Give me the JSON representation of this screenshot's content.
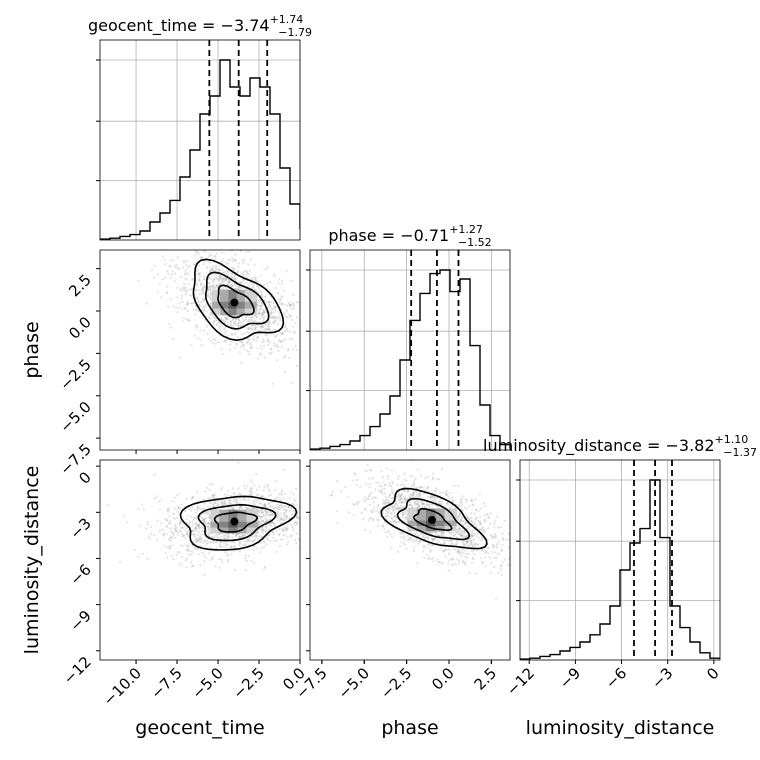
{
  "chart_data": {
    "type": "corner",
    "parameters": [
      "geocent_time",
      "phase",
      "luminosity_distance"
    ],
    "ranges": {
      "geocent_time": [
        -12.2,
        0.0
      ],
      "phase": [
        -8.2,
        3.6
      ],
      "luminosity_distance": [
        -12.6,
        0.4
      ]
    },
    "ticks": {
      "geocent_time": [
        -10.0,
        -7.5,
        -5.0,
        -2.5,
        0.0
      ],
      "phase": [
        -7.5,
        -5.0,
        -2.5,
        0.0,
        2.5
      ],
      "luminosity_distance": [
        -12,
        -9,
        -6,
        -3,
        0
      ]
    },
    "tick_labels": {
      "geocent_time": [
        "−10.0",
        "−7.5",
        "−5.0",
        "−2.5",
        "0.0"
      ],
      "phase": [
        "−7.5",
        "−5.0",
        "−2.5",
        "0.0",
        "2.5"
      ],
      "luminosity_distance": [
        "−12",
        "−9",
        "−6",
        "−3",
        "0"
      ]
    },
    "titles": {
      "geocent_time": {
        "name": "geocent_time",
        "median": "−3.74",
        "plus": "+1.74",
        "minus": "−1.79"
      },
      "phase": {
        "name": "phase",
        "median": "−0.71",
        "plus": "+1.27",
        "minus": "−1.52"
      },
      "luminosity_distance": {
        "name": "luminosity_distance",
        "median": "−3.82",
        "plus": "+1.10",
        "minus": "−1.37"
      }
    },
    "quantiles": {
      "geocent_time": [
        -5.53,
        -3.74,
        -2.0
      ],
      "phase": [
        -2.23,
        -0.71,
        0.56
      ],
      "luminosity_distance": [
        -5.19,
        -3.82,
        -2.72
      ]
    },
    "histograms": {
      "geocent_time": {
        "edges": [
          -12.2,
          -11.59,
          -10.98,
          -10.37,
          -9.76,
          -9.15,
          -8.54,
          -7.93,
          -7.32,
          -6.71,
          -6.1,
          -5.49,
          -4.88,
          -4.27,
          -3.66,
          -3.05,
          -2.44,
          -1.83,
          -1.22,
          -0.61,
          0.0
        ],
        "counts": [
          0.005,
          0.01,
          0.02,
          0.03,
          0.05,
          0.1,
          0.15,
          0.22,
          0.35,
          0.5,
          0.7,
          0.8,
          1.0,
          0.85,
          0.8,
          0.9,
          0.85,
          0.7,
          0.4,
          0.2,
          0.06
        ]
      },
      "phase": {
        "edges": [
          -8.2,
          -7.61,
          -7.02,
          -6.43,
          -5.84,
          -5.25,
          -4.66,
          -4.07,
          -3.48,
          -2.89,
          -2.3,
          -1.71,
          -1.12,
          -0.53,
          0.06,
          0.65,
          1.24,
          1.83,
          2.42,
          3.01,
          3.6
        ],
        "counts": [
          0.005,
          0.01,
          0.02,
          0.03,
          0.05,
          0.08,
          0.13,
          0.2,
          0.3,
          0.5,
          0.72,
          0.87,
          0.98,
          1.0,
          0.88,
          0.95,
          0.58,
          0.25,
          0.08,
          0.03,
          0.01
        ]
      },
      "luminosity_distance": {
        "edges": [
          -12.6,
          -11.95,
          -11.3,
          -10.65,
          -10.0,
          -9.35,
          -8.7,
          -8.05,
          -7.4,
          -6.75,
          -6.1,
          -5.45,
          -4.8,
          -4.15,
          -3.5,
          -2.85,
          -2.2,
          -1.55,
          -0.9,
          -0.25,
          0.4
        ],
        "counts": [
          0.005,
          0.01,
          0.02,
          0.03,
          0.05,
          0.07,
          0.1,
          0.14,
          0.2,
          0.3,
          0.5,
          0.65,
          0.73,
          1.0,
          0.68,
          0.3,
          0.18,
          0.1,
          0.04,
          0.01,
          0.005
        ]
      }
    },
    "scatter_pairs": [
      {
        "x": "geocent_time",
        "y": "phase",
        "peak": [
          -4.0,
          0.5
        ],
        "sigma": [
          2.0,
          1.6
        ],
        "rotation": -0.55,
        "contour_scales": [
          0.6,
          1.05,
          1.5
        ]
      },
      {
        "x": "geocent_time",
        "y": "luminosity_distance",
        "peak": [
          -4.0,
          -3.6
        ],
        "sigma": [
          2.2,
          1.5
        ],
        "rotation": 0.15,
        "contour_scales": [
          0.55,
          1.0,
          1.5
        ]
      },
      {
        "x": "phase",
        "y": "luminosity_distance",
        "peak": [
          -1.0,
          -3.5
        ],
        "sigma": [
          2.2,
          1.4
        ],
        "rotation": -0.45,
        "contour_scales": [
          0.5,
          0.95,
          1.4
        ]
      }
    ],
    "grid": true,
    "colors": {
      "hist": "#000000",
      "quantile": "#000000",
      "points": "#b0b0b0",
      "contour": "#000000",
      "grid": "#b0b0b0",
      "axes": "#000000"
    }
  }
}
